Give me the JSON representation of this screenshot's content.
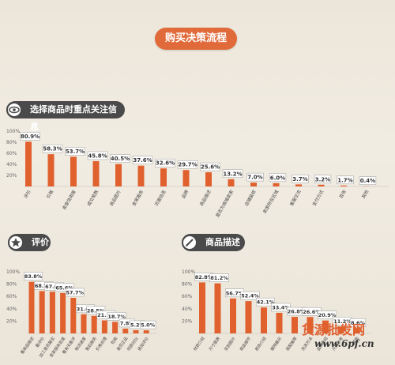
{
  "header": {
    "title": "购买决策流程"
  },
  "colors": {
    "bar": "#e0602e",
    "label_bg": "#ffffff",
    "panel_bg": "#4a4a4a",
    "accent": "#e16a3a"
  },
  "icons": {
    "top": "eye-icon",
    "bottom_left": "star-icon",
    "bottom_right": "pen-icon"
  },
  "panels": {
    "top": {
      "title": "选择商品时重点关注信息"
    },
    "bottom_left": {
      "title": "评价"
    },
    "bottom_right": {
      "title": "商品描述"
    }
  },
  "chart_data": [
    {
      "type": "bar",
      "title": "选择商品时重点关注信息",
      "categories": [
        "评价",
        "价格",
        "卖家信用度",
        "成交笔数",
        "商品图片",
        "卖家服务",
        "页面信息",
        "品牌",
        "商品描述",
        "是否为商城卖家",
        "店铺装修",
        "卖家所在区域",
        "客服交流",
        "支付方式",
        "咨询",
        "其他"
      ],
      "values": [
        80.9,
        58.3,
        53.7,
        45.8,
        40.5,
        37.6,
        32.6,
        29.7,
        25.6,
        13.2,
        7.0,
        6.0,
        3.7,
        3.2,
        1.7,
        0.4
      ],
      "value_labels": [
        "80.9%",
        "58.3%",
        "53.7%",
        "45.8%",
        "40.5%",
        "37.6%",
        "32.6%",
        "29.7%",
        "25.6%",
        "13.2%",
        "7.0%",
        "6.0%",
        "3.7%",
        "3.2%",
        "1.7%",
        "0.4%"
      ],
      "y_ticks": [
        "100%",
        "80%",
        "60%",
        "40%",
        "20%"
      ],
      "ylim": [
        0,
        100
      ]
    },
    {
      "type": "bar",
      "title": "评价",
      "categories": [
        "看商品描述",
        "看评价",
        "加工是否属实",
        "卖家服务态度",
        "看有无差评",
        "物流速度",
        "售后服务",
        "价格合理",
        "包装",
        "是否正品",
        "同款对比",
        "追加评价"
      ],
      "values": [
        83.8,
        68.7,
        67.6,
        65.6,
        57.7,
        31.0,
        28.5,
        21.1,
        18.7,
        7.8,
        5.2,
        5.0
      ],
      "value_labels": [
        "83.8%",
        "68.7%",
        "67.6%",
        "65.6%",
        "57.7%",
        "31.0%",
        "28.5%",
        "21.1%",
        "18.7%",
        "7.8%",
        "5.2%",
        "5.0%"
      ],
      "y_ticks": [
        "100%",
        "80%",
        "60%",
        "40%",
        "20%"
      ],
      "ylim": [
        0,
        100
      ]
    },
    {
      "type": "bar",
      "title": "商品描述",
      "categories": [
        "材质介绍",
        "尺寸图表",
        "实拍图片",
        "商品细节",
        "颜色介绍",
        "模特展示",
        "搭配推荐",
        "洗涤方法",
        "品牌介绍",
        "尺码参考",
        "其他"
      ],
      "values": [
        82.8,
        81.2,
        56.7,
        52.4,
        42.1,
        33.4,
        26.8,
        26.6,
        20.9,
        11.2,
        8.6
      ],
      "value_labels": [
        "82.8%",
        "81.2%",
        "56.7%",
        "52.4%",
        "42.1%",
        "33.4%",
        "26.8%",
        "26.6%",
        "20.9%",
        "11.2%",
        "8.6%"
      ],
      "y_ticks": [
        "100%",
        "80%",
        "60%",
        "40%",
        "20%"
      ],
      "ylim": [
        0,
        100
      ]
    }
  ],
  "watermark": {
    "brand": "货源批发网",
    "url": "www.6pf.cn"
  }
}
